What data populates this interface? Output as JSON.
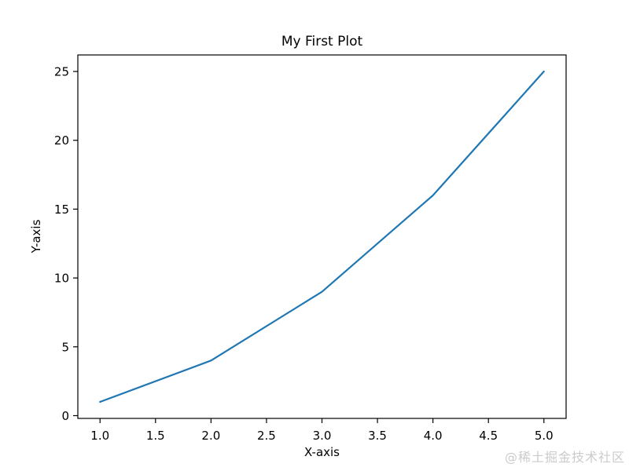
{
  "page": {
    "watermark": "@稀土掘金技术社区"
  },
  "chart_data": {
    "type": "line",
    "title": "My First Plot",
    "xlabel": "X-axis",
    "ylabel": "Y-axis",
    "x": [
      1,
      2,
      3,
      4,
      5
    ],
    "y": [
      1,
      4,
      9,
      16,
      25
    ],
    "xticks": [
      1.0,
      1.5,
      2.0,
      2.5,
      3.0,
      3.5,
      4.0,
      4.5,
      5.0
    ],
    "xtick_labels": [
      "1.0",
      "1.5",
      "2.0",
      "2.5",
      "3.0",
      "3.5",
      "4.0",
      "4.5",
      "5.0"
    ],
    "yticks": [
      0,
      5,
      10,
      15,
      20,
      25
    ],
    "ytick_labels": [
      "0",
      "5",
      "10",
      "15",
      "20",
      "25"
    ],
    "xlim": [
      0.8,
      5.2
    ],
    "ylim": [
      -0.2,
      26.2
    ],
    "grid": false,
    "legend": "none",
    "line_color": "#1f77b4",
    "frame_color": "#000000"
  }
}
